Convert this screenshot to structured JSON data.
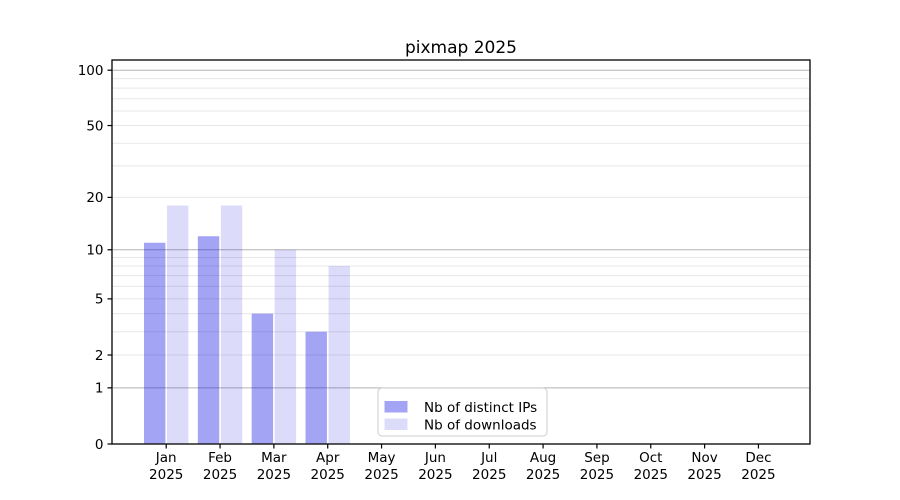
{
  "figure": {
    "title": "pixmap 2025"
  },
  "chart_data": {
    "type": "bar",
    "title": "pixmap 2025",
    "categories": [
      "Jan",
      "Feb",
      "Mar",
      "Apr",
      "May",
      "Jun",
      "Jul",
      "Aug",
      "Sep",
      "Oct",
      "Nov",
      "Dec"
    ],
    "x_year_label": "2025",
    "series": [
      {
        "name": "Nb of distinct IPs",
        "apparent_color": "#a4a4f6",
        "fill_base": "#0202e1",
        "fill_opacity": 0.36,
        "values": [
          11,
          12,
          4,
          3,
          0,
          0,
          0,
          0,
          0,
          0,
          0,
          0
        ]
      },
      {
        "name": "Nb of downloads",
        "apparent_color": "#dcdcfa",
        "fill_base": "#0505dc",
        "fill_opacity": 0.14,
        "values": [
          18,
          18,
          10,
          8,
          0,
          0,
          0,
          0,
          0,
          0,
          0,
          0
        ]
      }
    ],
    "y_axis": {
      "scale": "log1p",
      "tick_labels": [
        0,
        1,
        2,
        5,
        10,
        20,
        50,
        100
      ],
      "major_gridlines": [
        1,
        10,
        100
      ],
      "minor_gridlines": [
        2,
        3,
        4,
        5,
        6,
        7,
        8,
        9,
        20,
        30,
        40,
        50,
        60,
        70,
        80,
        90
      ],
      "ylim": [
        0,
        113
      ]
    },
    "legend": {
      "entries": [
        "Nb of distinct IPs",
        "Nb of downloads"
      ],
      "position": "inside-bottom-center"
    },
    "grid": true,
    "colors": {
      "major_grid": "#b3b3b3",
      "minor_grid": "#e7e7e7",
      "axis": "#000000",
      "text": "#000000",
      "background": "#ffffff",
      "legend_border": "#cccccc"
    }
  }
}
